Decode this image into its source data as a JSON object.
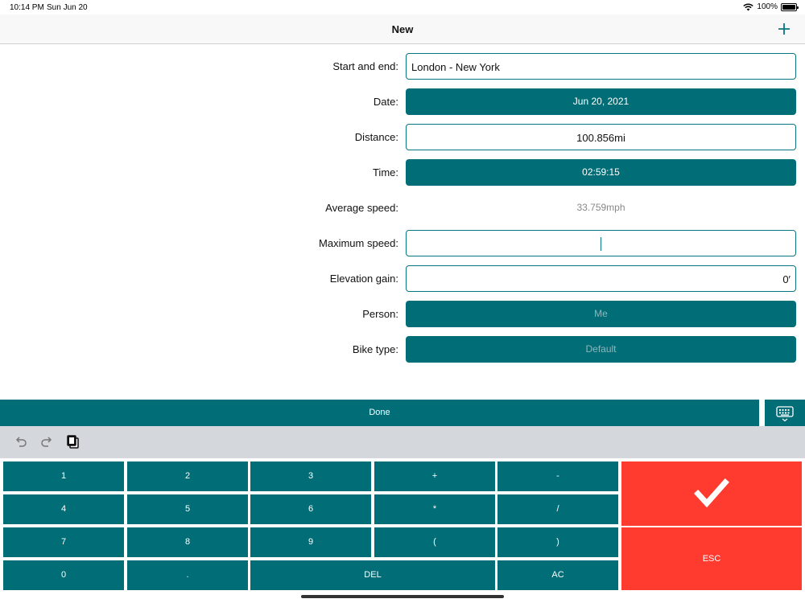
{
  "status": {
    "time": "10:14 PM",
    "date": "Sun Jun 20",
    "battery": "100%",
    "battery_level": 1.0
  },
  "nav": {
    "title": "New",
    "add_icon": "plus-icon"
  },
  "form": {
    "start_end": {
      "label": "Start and end:",
      "value": "London - New York"
    },
    "date": {
      "label": "Date:",
      "value": "Jun 20, 2021"
    },
    "distance": {
      "label": "Distance:",
      "value": "100.856mi"
    },
    "time": {
      "label": "Time:",
      "value": "02:59:15"
    },
    "avg_speed": {
      "label": "Average speed:",
      "value": "33.759mph"
    },
    "max_speed": {
      "label": "Maximum speed:",
      "value": ""
    },
    "elevation": {
      "label": "Elevation gain:",
      "value": "0′"
    },
    "person": {
      "label": "Person:",
      "value": "Me"
    },
    "bike_type": {
      "label": "Bike type:",
      "value": "Default"
    }
  },
  "done_bar": {
    "label": "Done"
  },
  "keypad": {
    "row1": [
      "1",
      "2",
      "3",
      "+",
      "-"
    ],
    "row2": [
      "4",
      "5",
      "6",
      "*",
      "/"
    ],
    "row3": [
      "7",
      "8",
      "9",
      "(",
      ")"
    ],
    "row4": [
      "0",
      ".",
      "DEL",
      "AC"
    ],
    "esc": "ESC"
  },
  "colors": {
    "accent": "#006d77",
    "confirm": "#ff3b30"
  }
}
